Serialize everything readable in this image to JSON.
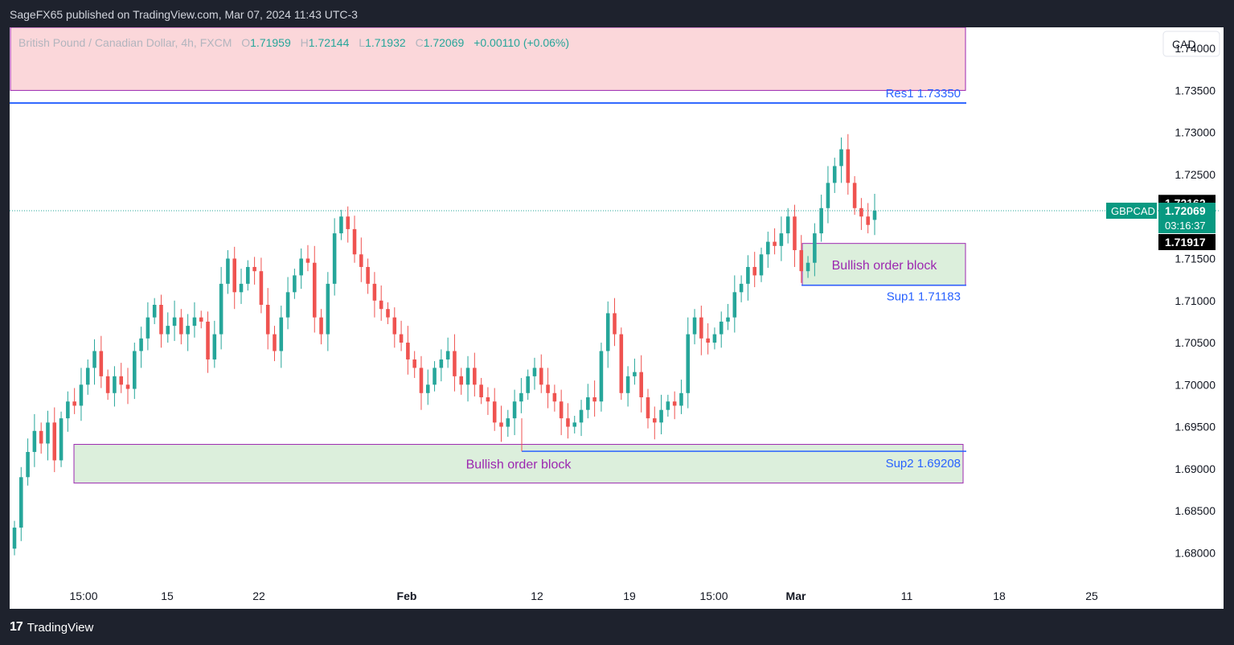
{
  "header": {
    "published": "SageFX65 published on TradingView.com, Mar 07, 2024 11:43 UTC-3"
  },
  "legend": {
    "instrument": "British Pound / Canadian Dollar, 4h, FXCM",
    "o_label": "O",
    "o_value": "1.71959",
    "h_label": "H",
    "h_value": "1.72144",
    "l_label": "L",
    "l_value": "1.71932",
    "c_label": "C",
    "c_value": "1.72069",
    "change": "+0.00110 (+0.06%)"
  },
  "currency_button": "CAD",
  "footer": {
    "brand": "TradingView",
    "logo_glyph": "17"
  },
  "colors": {
    "up": "#26a69a",
    "down": "#ef5350",
    "resistance_zone": "#fbd7da",
    "order_block": "#dcefdc",
    "order_block_border": "#9c27b0",
    "level_line": "#2962ff",
    "price_tag": "#089981",
    "dark_tag": "#000000"
  },
  "chart_data": {
    "type": "candlestick",
    "symbol": "GBPCAD",
    "timeframe": "4h",
    "y_axis": {
      "ticks": [
        "1.74000",
        "1.73500",
        "1.73000",
        "1.72500",
        "1.72000",
        "1.71500",
        "1.71000",
        "1.70500",
        "1.70000",
        "1.69500",
        "1.69000",
        "1.68500",
        "1.68000"
      ],
      "range": [
        1.6765,
        1.7425
      ]
    },
    "x_axis": {
      "ticks": [
        {
          "label": "15:00",
          "bold": false
        },
        {
          "label": "15",
          "bold": false
        },
        {
          "label": "22",
          "bold": false
        },
        {
          "label": "Feb",
          "bold": true
        },
        {
          "label": "12",
          "bold": false
        },
        {
          "label": "19",
          "bold": false
        },
        {
          "label": "15:00",
          "bold": false
        },
        {
          "label": "Mar",
          "bold": true
        },
        {
          "label": "11",
          "bold": false
        },
        {
          "label": "18",
          "bold": false
        },
        {
          "label": "25",
          "bold": false
        }
      ]
    },
    "price_labels": {
      "high": "1.72162",
      "symbol": "GBPCAD",
      "last": "1.72069",
      "countdown": "03:16:37",
      "low": "1.71917"
    },
    "last_price": 1.72069,
    "zones": [
      {
        "type": "resistance-zone",
        "from": 1.735,
        "to": 1.7425
      },
      {
        "type": "order-block",
        "label": "Bullish order block",
        "from": 1.7118,
        "to": 1.7168
      },
      {
        "type": "order-block",
        "label": "Bullish order block",
        "from": 1.6883,
        "to": 1.6929
      }
    ],
    "levels": [
      {
        "name": "Res1",
        "label": "Res1 1.73350",
        "value": 1.7335
      },
      {
        "name": "Sup1",
        "label": "Sup1 1.71183",
        "value": 1.71183
      },
      {
        "name": "Sup2",
        "label": "Sup2 1.69208",
        "value": 1.69208
      }
    ],
    "series": [
      {
        "points": [
          [
            1.6805,
            1.683
          ],
          [
            1.683,
            1.689
          ],
          [
            1.689,
            1.692
          ],
          [
            1.692,
            1.6945
          ],
          [
            1.6945,
            1.693
          ],
          [
            1.693,
            1.6955
          ],
          [
            1.6955,
            1.691
          ],
          [
            1.691,
            1.696
          ],
          [
            1.696,
            1.698
          ],
          [
            1.698,
            1.6975
          ],
          [
            1.6975,
            1.7
          ],
          [
            1.7,
            1.702
          ],
          [
            1.702,
            1.704
          ],
          [
            1.704,
            1.701
          ],
          [
            1.701,
            1.699
          ],
          [
            1.699,
            1.701
          ],
          [
            1.701,
            1.7
          ],
          [
            1.7,
            1.6995
          ],
          [
            1.6995,
            1.704
          ],
          [
            1.704,
            1.7055
          ],
          [
            1.7055,
            1.708
          ],
          [
            1.708,
            1.7095
          ],
          [
            1.7095,
            1.706
          ],
          [
            1.706,
            1.707
          ],
          [
            1.707,
            1.708
          ],
          [
            1.708,
            1.706
          ],
          [
            1.706,
            1.707
          ],
          [
            1.707,
            1.708
          ],
          [
            1.708,
            1.7075
          ],
          [
            1.7075,
            1.703
          ],
          [
            1.703,
            1.706
          ],
          [
            1.706,
            1.712
          ],
          [
            1.712,
            1.715
          ],
          [
            1.715,
            1.711
          ],
          [
            1.711,
            1.712
          ],
          [
            1.712,
            1.714
          ],
          [
            1.714,
            1.7135
          ],
          [
            1.7135,
            1.7095
          ],
          [
            1.7095,
            1.706
          ],
          [
            1.706,
            1.704
          ],
          [
            1.704,
            1.708
          ],
          [
            1.708,
            1.711
          ],
          [
            1.711,
            1.713
          ],
          [
            1.713,
            1.715
          ],
          [
            1.715,
            1.7145
          ],
          [
            1.7145,
            1.708
          ],
          [
            1.708,
            1.706
          ],
          [
            1.706,
            1.712
          ],
          [
            1.712,
            1.718
          ],
          [
            1.718,
            1.72
          ],
          [
            1.72,
            1.7185
          ],
          [
            1.7185,
            1.7155
          ],
          [
            1.7155,
            1.714
          ],
          [
            1.714,
            1.712
          ],
          [
            1.712,
            1.71
          ],
          [
            1.71,
            1.709
          ],
          [
            1.709,
            1.708
          ],
          [
            1.708,
            1.706
          ],
          [
            1.706,
            1.705
          ],
          [
            1.705,
            1.703
          ],
          [
            1.703,
            1.702
          ],
          [
            1.702,
            1.699
          ],
          [
            1.699,
            1.7
          ],
          [
            1.7,
            1.702
          ],
          [
            1.702,
            1.703
          ],
          [
            1.703,
            1.704
          ],
          [
            1.704,
            1.701
          ],
          [
            1.701,
            1.7
          ],
          [
            1.7,
            1.702
          ],
          [
            1.702,
            1.7
          ],
          [
            1.7,
            1.6985
          ],
          [
            1.6985,
            1.698
          ],
          [
            1.698,
            1.6955
          ],
          [
            1.6955,
            1.695
          ],
          [
            1.695,
            1.696
          ],
          [
            1.696,
            1.698
          ],
          [
            1.698,
            1.699
          ],
          [
            1.699,
            1.701
          ],
          [
            1.701,
            1.702
          ],
          [
            1.702,
            1.7
          ],
          [
            1.7,
            1.699
          ],
          [
            1.699,
            1.698
          ],
          [
            1.698,
            1.696
          ],
          [
            1.696,
            1.695
          ],
          [
            1.695,
            1.6955
          ],
          [
            1.6955,
            1.697
          ],
          [
            1.697,
            1.6985
          ],
          [
            1.6985,
            1.698
          ],
          [
            1.698,
            1.704
          ],
          [
            1.704,
            1.7085
          ],
          [
            1.7085,
            1.706
          ],
          [
            1.706,
            1.699
          ],
          [
            1.699,
            1.701
          ],
          [
            1.701,
            1.7015
          ],
          [
            1.7015,
            1.6985
          ],
          [
            1.6985,
            1.696
          ],
          [
            1.696,
            1.6955
          ],
          [
            1.6955,
            1.697
          ],
          [
            1.697,
            1.698
          ],
          [
            1.698,
            1.6975
          ],
          [
            1.6975,
            1.699
          ],
          [
            1.699,
            1.706
          ],
          [
            1.706,
            1.708
          ],
          [
            1.708,
            1.7055
          ],
          [
            1.7055,
            1.705
          ],
          [
            1.705,
            1.706
          ],
          [
            1.706,
            1.7075
          ],
          [
            1.7075,
            1.708
          ],
          [
            1.708,
            1.711
          ],
          [
            1.711,
            1.712
          ],
          [
            1.712,
            1.714
          ],
          [
            1.714,
            1.713
          ],
          [
            1.713,
            1.7155
          ],
          [
            1.7155,
            1.717
          ],
          [
            1.717,
            1.7165
          ],
          [
            1.7165,
            1.718
          ],
          [
            1.718,
            1.72
          ],
          [
            1.72,
            1.716
          ],
          [
            1.716,
            1.7135
          ],
          [
            1.7135,
            1.7145
          ],
          [
            1.7145,
            1.718
          ],
          [
            1.718,
            1.721
          ],
          [
            1.721,
            1.724
          ],
          [
            1.724,
            1.726
          ],
          [
            1.726,
            1.728
          ],
          [
            1.728,
            1.724
          ],
          [
            1.724,
            1.721
          ],
          [
            1.721,
            1.72
          ],
          [
            1.72,
            1.719
          ],
          [
            1.7196,
            1.7207
          ]
        ]
      }
    ]
  }
}
